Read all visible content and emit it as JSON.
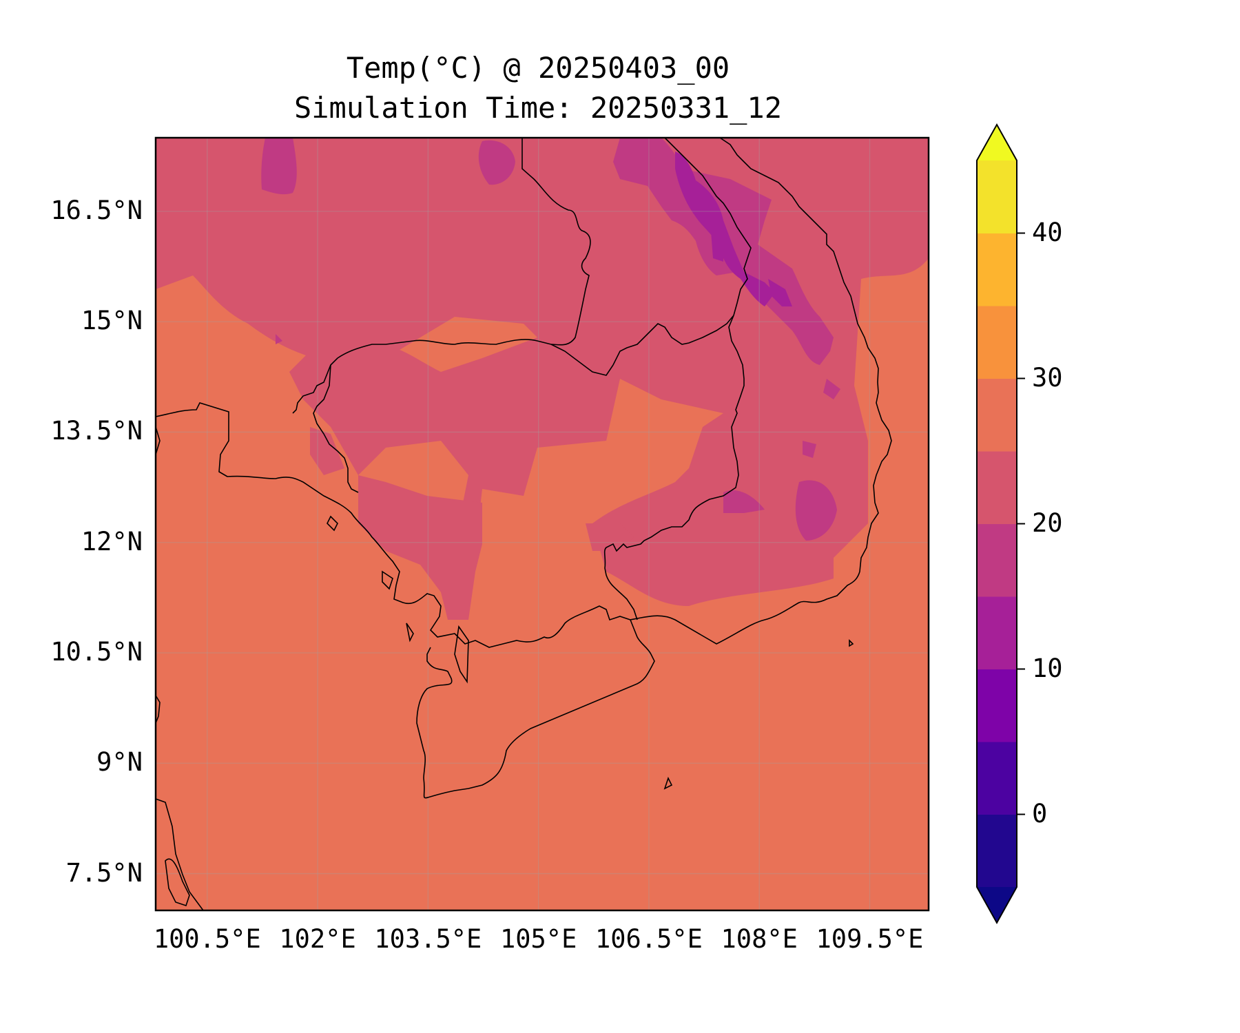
{
  "title": {
    "line1": "Temp(°C) @ 20250403_00",
    "line2": "Simulation Time: 20250331_12"
  },
  "chart_data": {
    "type": "heatmap",
    "variable": "Temp(°C)",
    "lon_range": [
      99.8,
      110.3
    ],
    "lat_range": [
      7.0,
      17.5
    ],
    "x_ticks": [
      {
        "value": 100.5,
        "label": "100.5°E"
      },
      {
        "value": 102.0,
        "label": "102°E"
      },
      {
        "value": 103.5,
        "label": "103.5°E"
      },
      {
        "value": 105.0,
        "label": "105°E"
      },
      {
        "value": 106.5,
        "label": "106.5°E"
      },
      {
        "value": 108.0,
        "label": "108°E"
      },
      {
        "value": 109.5,
        "label": "109.5°E"
      }
    ],
    "y_ticks": [
      {
        "value": 16.5,
        "label": "16.5°N"
      },
      {
        "value": 15.0,
        "label": "15°N"
      },
      {
        "value": 13.5,
        "label": "13.5°N"
      },
      {
        "value": 12.0,
        "label": "12°N"
      },
      {
        "value": 10.5,
        "label": "10.5°N"
      },
      {
        "value": 9.0,
        "label": "9°N"
      },
      {
        "value": 7.5,
        "label": "7.5°N"
      }
    ],
    "grid": true,
    "colorbar": {
      "range": [
        -5,
        45
      ],
      "extend": "both",
      "levels": [
        {
          "from": -5,
          "to": 0,
          "color": "#22078f"
        },
        {
          "from": 0,
          "to": 5,
          "color": "#4c02a1"
        },
        {
          "from": 5,
          "to": 10,
          "color": "#7e03a8"
        },
        {
          "from": 10,
          "to": 15,
          "color": "#a62098"
        },
        {
          "from": 15,
          "to": 20,
          "color": "#c03a83"
        },
        {
          "from": 20,
          "to": 25,
          "color": "#d6556d"
        },
        {
          "from": 25,
          "to": 30,
          "color": "#e97257"
        },
        {
          "from": 30,
          "to": 35,
          "color": "#f8923c"
        },
        {
          "from": 35,
          "to": 40,
          "color": "#fdb42f"
        },
        {
          "from": 40,
          "to": 45,
          "color": "#f3e22b"
        }
      ],
      "under_color": "#0d0887",
      "over_color": "#f0f921",
      "ticks": [
        {
          "value": 0,
          "label": "0"
        },
        {
          "value": 10,
          "label": "10"
        },
        {
          "value": 20,
          "label": "20"
        },
        {
          "value": 30,
          "label": "30"
        },
        {
          "value": 40,
          "label": "40"
        }
      ]
    },
    "field_summary": {
      "background_band_c": [
        25,
        30
      ],
      "northern_interior_band_c": [
        20,
        25
      ],
      "highlands_band_c": [
        10,
        20
      ]
    }
  }
}
